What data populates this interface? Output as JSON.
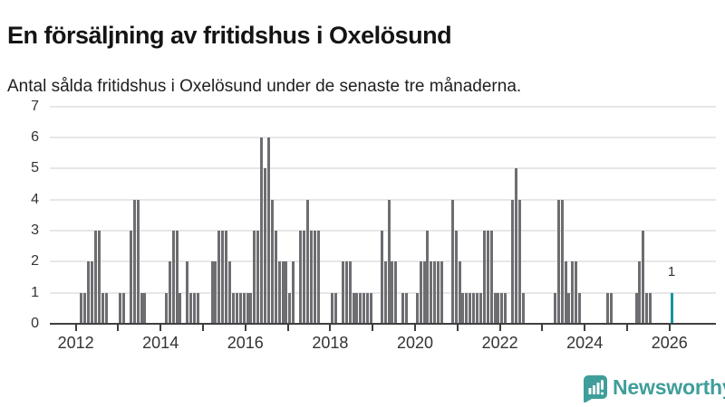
{
  "header": {
    "title": "En försäljning av fritidshus i Oxelösund",
    "subtitle": "Antal sålda fritidshus i Oxelösund under de senaste tre månaderna."
  },
  "chart_data": {
    "type": "bar",
    "title": "En försäljning av fritidshus i Oxelösund",
    "subtitle": "Antal sålda fritidshus i Oxelösund under de senaste tre månaderna.",
    "xlabel": "",
    "ylabel": "",
    "ylim": [
      0,
      7
    ],
    "grid": "horizontal",
    "legend": "none",
    "start_month": "2011-07",
    "end_month": "2026-01",
    "frequency": "monthly",
    "values": [
      0,
      0,
      0,
      0,
      0,
      0,
      0,
      1,
      1,
      2,
      2,
      3,
      3,
      1,
      1,
      0,
      0,
      0,
      1,
      1,
      0,
      3,
      4,
      4,
      1,
      1,
      0,
      0,
      0,
      0,
      0,
      1,
      2,
      3,
      3,
      1,
      0,
      2,
      1,
      1,
      1,
      0,
      0,
      0,
      2,
      2,
      3,
      3,
      3,
      2,
      1,
      1,
      1,
      1,
      1,
      1,
      3,
      3,
      6,
      5,
      6,
      4,
      3,
      2,
      2,
      2,
      1,
      2,
      0,
      3,
      3,
      4,
      3,
      3,
      3,
      0,
      0,
      0,
      1,
      1,
      0,
      2,
      2,
      2,
      1,
      1,
      1,
      1,
      1,
      1,
      0,
      0,
      3,
      2,
      4,
      2,
      2,
      0,
      1,
      1,
      0,
      0,
      1,
      2,
      2,
      3,
      2,
      2,
      2,
      2,
      0,
      0,
      4,
      3,
      2,
      1,
      1,
      1,
      1,
      1,
      1,
      3,
      3,
      3,
      1,
      1,
      1,
      1,
      0,
      4,
      5,
      4,
      1,
      0,
      0,
      0,
      0,
      0,
      0,
      0,
      0,
      1,
      4,
      4,
      2,
      1,
      2,
      2,
      1,
      0,
      0,
      0,
      0,
      0,
      0,
      0,
      1,
      1,
      0,
      0,
      0,
      0,
      0,
      0,
      1,
      2,
      3,
      1,
      1,
      0,
      0,
      0,
      0,
      0,
      1
    ],
    "highlight_last": true,
    "yticks": [
      0,
      1,
      2,
      3,
      4,
      5,
      6,
      7
    ],
    "xtick_years": [
      2012,
      2013,
      2014,
      2015,
      2016,
      2017,
      2018,
      2019,
      2020,
      2021,
      2022,
      2023,
      2024,
      2025,
      2026
    ],
    "xtick_labeled_years": [
      "2012",
      "2014",
      "2016",
      "2018",
      "2020",
      "2022",
      "2024",
      "2026"
    ]
  },
  "annotation": {
    "last_value_label": "1"
  },
  "colors": {
    "bar": "#6d6d72",
    "highlight": "#13989d",
    "gridline": "#e7e7e7",
    "axis": "#3f3f3f",
    "text": "#333333",
    "brand": "#3f9e9a"
  },
  "footer": {
    "brand": "Newsworthy"
  }
}
